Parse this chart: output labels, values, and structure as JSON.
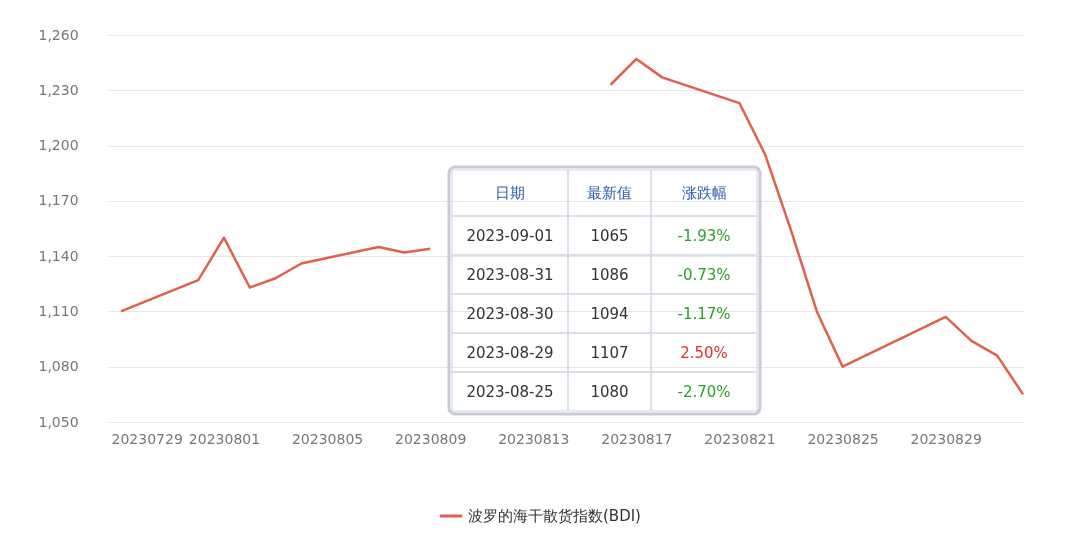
{
  "chart_data": {
    "type": "line",
    "x": [
      "2023-07-28",
      "2023-07-31",
      "2023-08-01",
      "2023-08-02",
      "2023-08-03",
      "2023-08-04",
      "2023-08-07",
      "2023-08-08",
      "2023-08-09",
      "2023-08-10",
      "2023-08-11",
      "2023-08-14",
      "2023-08-15",
      "2023-08-16",
      "2023-08-17",
      "2023-08-18",
      "2023-08-21",
      "2023-08-22",
      "2023-08-23",
      "2023-08-24",
      "2023-08-25",
      "2023-08-29",
      "2023-08-30",
      "2023-08-31",
      "2023-09-01"
    ],
    "series": [
      {
        "name": "波罗的海干散货指数(BDI)",
        "color": "#e0604a",
        "values": [
          1110,
          1127,
          1150,
          1123,
          1128,
          1136,
          1145,
          1142,
          1144,
          null,
          null,
          null,
          null,
          1233,
          1247,
          1237,
          1223,
          1195,
          1154,
          1110,
          1080,
          1107,
          1094,
          1086,
          1065
        ]
      }
    ],
    "xlim": [
      "2023-07-27T12:00",
      "2023-09-01"
    ],
    "xticks": [
      {
        "value": "2023-07-29",
        "label": "20230729"
      },
      {
        "value": "2023-08-01",
        "label": "20230801"
      },
      {
        "value": "2023-08-05",
        "label": "20230805"
      },
      {
        "value": "2023-08-09",
        "label": "20230809"
      },
      {
        "value": "2023-08-13",
        "label": "20230813"
      },
      {
        "value": "2023-08-17",
        "label": "20230817"
      },
      {
        "value": "2023-08-21",
        "label": "20230821"
      },
      {
        "value": "2023-08-25",
        "label": "20230825"
      },
      {
        "value": "2023-08-29",
        "label": "20230829"
      }
    ],
    "ylim": [
      1050,
      1260
    ],
    "yticks": [
      {
        "value": 1050,
        "label": "1,050"
      },
      {
        "value": 1080,
        "label": "1,080"
      },
      {
        "value": 1110,
        "label": "1,110"
      },
      {
        "value": 1140,
        "label": "1,140"
      },
      {
        "value": 1170,
        "label": "1,170"
      },
      {
        "value": 1200,
        "label": "1,200"
      },
      {
        "value": 1230,
        "label": "1,230"
      },
      {
        "value": 1260,
        "label": "1,260"
      }
    ],
    "grid": "y",
    "legend": "bottom",
    "annotations": [
      "日期",
      "最新值",
      "涨跌幅",
      "2023-09-01",
      "1065",
      "-1.93%",
      "2023-08-31",
      "1086",
      "-0.73%",
      "2023-08-30",
      "1094",
      "-1.17%",
      "2023-08-29",
      "1107",
      "2.50%",
      "2023-08-25",
      "1080",
      "-2.70%"
    ]
  }
}
